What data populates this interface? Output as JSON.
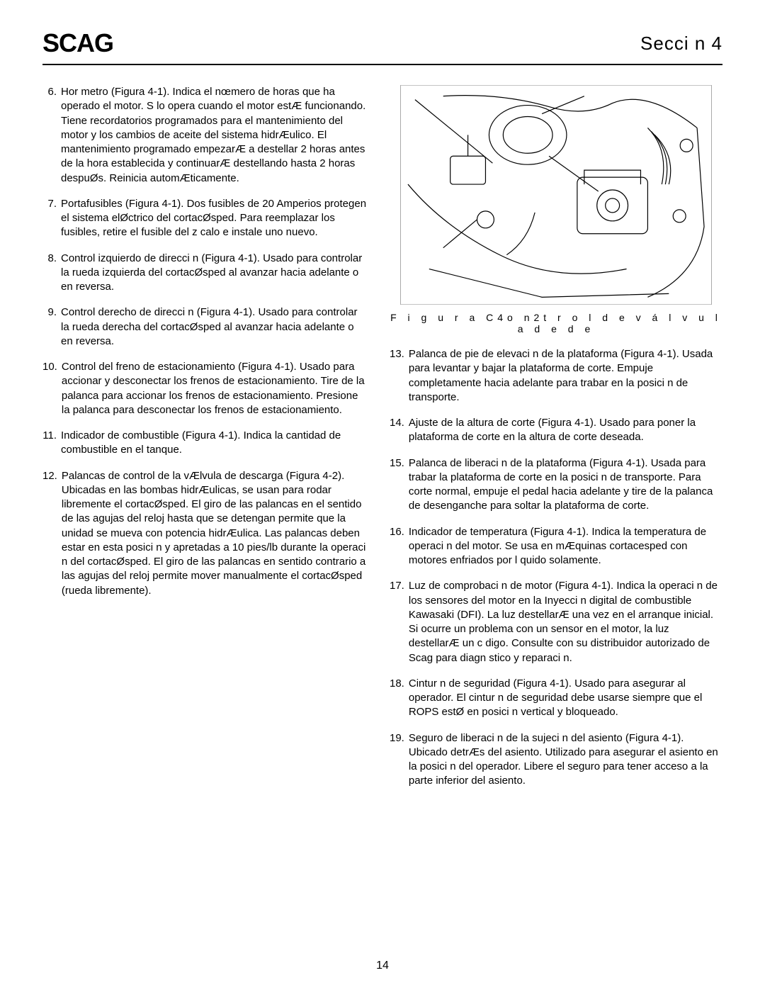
{
  "header": {
    "logo": "SCAG",
    "section": "Secci n 4"
  },
  "colors": {
    "text": "#000000",
    "background": "#ffffff",
    "rule": "#000000"
  },
  "typography": {
    "body_fontsize": 15,
    "body_lineheight": 1.35,
    "logo_fontsize": 36,
    "logo_weight": 900,
    "section_fontsize": 26,
    "caption_fontsize": 14,
    "caption_letterspacing": 6
  },
  "left_items": [
    {
      "num": "6.",
      "text": "Hor metro (Figura 4-1).    Indica el nœmero de horas que ha operado el motor. S lo opera cuando el motor estÆ funcionando. Tiene recordatorios programados para el mantenimiento del motor y los cambios de aceite del sistema hidrÆulico. El mantenimiento programado empezarÆ a destellar 2 horas antes de la hora establecida y continuarÆ destellando hasta 2 horas despuØs. Reinicia automÆticamente."
    },
    {
      "num": "7.",
      "text": "Portafusibles (Figura 4-1).    Dos fusibles de 20 Amperios protegen el sistema elØctrico del cortacØsped. Para reemplazar los fusibles, retire el fusible del z calo e instale uno nuevo."
    },
    {
      "num": "8.",
      "text": "Control izquierdo de direcci n (Figura 4-1).    Usado para controlar la rueda izquierda del cortacØsped al avanzar hacia adelante o en reversa."
    },
    {
      "num": "9.",
      "text": "Control derecho de direcci n (Figura 4-1).    Usado para controlar la rueda derecha del cortacØsped al avanzar hacia adelante o en reversa."
    },
    {
      "num": "10.",
      "text": "Control del freno de estacionamiento (Figura 4-1). Usado para accionar y desconectar los frenos de estacionamiento. Tire de la palanca para accionar los frenos de estacionamiento. Presione la palanca para desconectar los frenos de estacionamiento."
    },
    {
      "num": "11.",
      "text": "Indicador de combustible (Figura 4-1).    Indica la cantidad de combustible en el tanque."
    },
    {
      "num": "12.",
      "text": "Palancas de control de la vÆlvula de descarga (Figura 4-2). Ubicadas en las bombas hidrÆulicas, se usan para  rodar libremente  el cortacØsped. El giro de las palancas en el sentido de las agujas del reloj hasta que se detengan permite que la unidad se mueva con potencia hidrÆulica. Las palancas deben estar en esta posici n y apretadas a 10 pies/lb durante la operaci n del cortacØsped. El giro de las palancas en sentido contrario a las agujas del reloj permite mover manualmente el cortacØsped (rueda libremente)."
    }
  ],
  "figure": {
    "caption": "F i g u r a C4o n2t r o l   d e   v á l v u l a   d e   d e",
    "alt": "Mechanical line drawing of dump valve control"
  },
  "right_items": [
    {
      "num": "13.",
      "text": "Palanca de pie de elevaci n de la plataforma (Figura 4-1).  Usada para levantar y bajar la plataforma de corte. Empuje completamente hacia adelante para trabar en la posici n de transporte."
    },
    {
      "num": "14.",
      "text": "Ajuste de la altura de corte (Figura 4-1).    Usado para poner la plataforma de corte en la altura de corte deseada."
    },
    {
      "num": "15.",
      "text": "Palanca de liberaci n de la plataforma (Figura 4-1). Usada para trabar la plataforma de corte en la posici n de transporte. Para corte normal, empuje el pedal hacia adelante y tire de la palanca de desenganche para soltar la plataforma de corte."
    },
    {
      "num": "16.",
      "text": "Indicador de temperatura (Figura 4-1).    Indica la temperatura de operaci n del motor. Se usa en mÆquinas cortacesped con motores enfriados por l quido solamente."
    },
    {
      "num": "17.",
      "text": "Luz de comprobaci n de motor (Figura 4-1).    Indica la operaci n de los sensores del motor en la Inyecci n digital de combustible Kawasaki (DFI). La luz destellarÆ una vez en el arranque inicial. Si ocurre un problema con un sensor en el motor, la luz destellarÆ un c digo. Consulte con su distribuidor autorizado de Scag para diagn stico y reparaci n."
    },
    {
      "num": "18.",
      "text": "Cintur n de seguridad (Figura 4-1).    Usado para asegurar al operador. El cintur n de seguridad debe usarse siempre que el ROPS estØ en posici n vertical y bloqueado."
    },
    {
      "num": "19.",
      "text": "Seguro de liberaci n de la sujeci n del asiento (Figura 4-1).  Ubicado detrÆs del asiento. Utilizado para asegurar el asiento en la posici n del operador. Libere el seguro para tener acceso a la parte inferior del asiento."
    }
  ],
  "page_number": "14"
}
